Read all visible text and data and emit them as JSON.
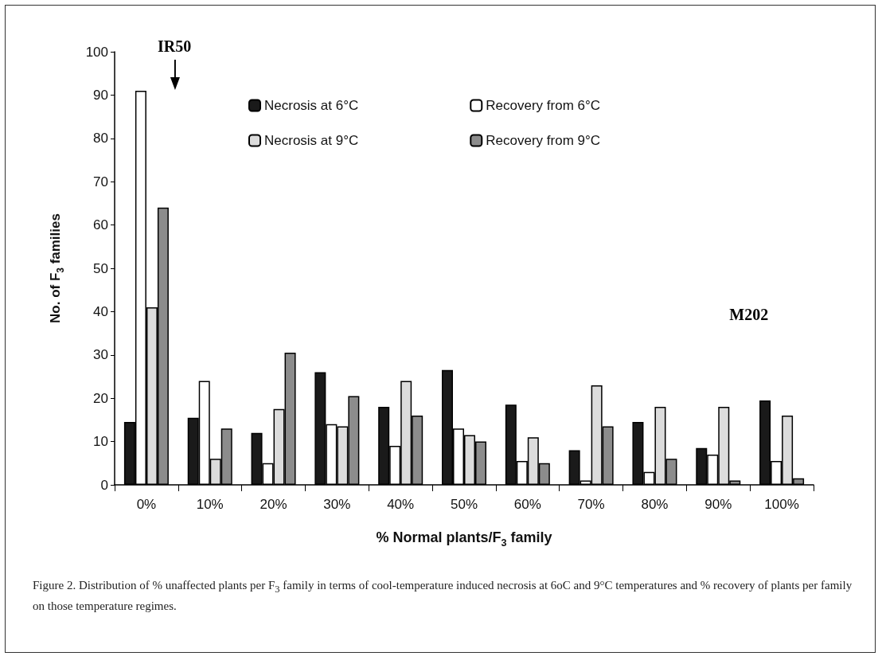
{
  "chart_data": {
    "type": "bar",
    "categories": [
      "0%",
      "10%",
      "20%",
      "30%",
      "40%",
      "50%",
      "60%",
      "70%",
      "80%",
      "90%",
      "100%"
    ],
    "series": [
      {
        "name": "Necrosis at 6°C",
        "color": "#1a1a1a",
        "values": [
          14.5,
          15.5,
          12,
          26,
          18,
          26.5,
          18.5,
          8,
          14.5,
          8.5,
          19.5
        ]
      },
      {
        "name": "Recovery from 6°C",
        "color": "#ffffff",
        "values": [
          91,
          24,
          5,
          14,
          9,
          13,
          5.5,
          1,
          3,
          7,
          5.5
        ]
      },
      {
        "name": "Necrosis at 9°C",
        "color": "#dcdcdc",
        "values": [
          41,
          6,
          17.5,
          13.5,
          24,
          11.5,
          11,
          23,
          18,
          18,
          16
        ]
      },
      {
        "name": "Recovery from 9°C",
        "color": "#8c8c8c",
        "values": [
          64,
          13,
          30.5,
          20.5,
          16,
          10,
          5,
          13.5,
          6,
          1,
          1.5
        ]
      }
    ],
    "xlabel": "% Normal plants/F$_{3}$ family",
    "ylabel": "No. of F$_{3}$ families",
    "ylim": [
      0,
      100
    ],
    "yticks": [
      0,
      10,
      20,
      30,
      40,
      50,
      60,
      70,
      80,
      90,
      100
    ],
    "grid": false,
    "legend": "top",
    "annotations": [
      "IR50",
      "M202",
      "Figure 2.  Distribution of  % unaffected plants per F$_{3}$ family in terms of cool-temperature induced necrosis at 6oC and 9°C temperatures and % recovery of plants per family on those temperature regimes."
    ]
  }
}
